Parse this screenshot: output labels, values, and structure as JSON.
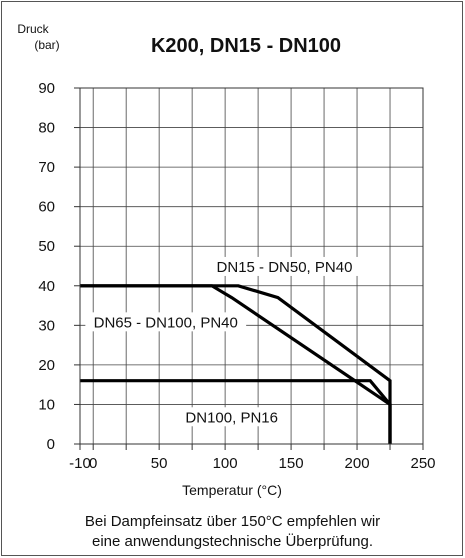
{
  "chart_data": {
    "type": "line",
    "title": "K200, DN15 - DN100",
    "ylabel": [
      "Druck",
      "(bar)"
    ],
    "xlabel": "Temperatur (°C)",
    "xlim": [
      -10,
      250
    ],
    "ylim": [
      0,
      90
    ],
    "x_ticks": [
      "-10",
      "0",
      "50",
      "100",
      "150",
      "200",
      "250"
    ],
    "y_ticks": [
      "0",
      "10",
      "20",
      "30",
      "40",
      "50",
      "60",
      "70",
      "80",
      "90"
    ],
    "grid": true,
    "series": [
      {
        "name": "DN15 - DN50, PN40",
        "points": [
          [
            -10,
            40
          ],
          [
            110,
            40
          ],
          [
            140,
            37
          ],
          [
            225,
            16
          ],
          [
            225,
            0
          ]
        ]
      },
      {
        "name": "DN65 - DN100, PN40",
        "points": [
          [
            -10,
            40
          ],
          [
            90,
            40
          ],
          [
            105,
            37
          ],
          [
            225,
            10
          ],
          [
            225,
            0
          ]
        ]
      },
      {
        "name": "DN100, PN16",
        "points": [
          [
            -10,
            16
          ],
          [
            210,
            16
          ],
          [
            225,
            10
          ],
          [
            225,
            0
          ]
        ]
      }
    ],
    "annotations": [
      {
        "text": "DN15 - DN50, PN40",
        "x": 145,
        "y": 44
      },
      {
        "text": "DN65 - DN100, PN40",
        "x": 55,
        "y": 30
      },
      {
        "text": "DN100, PN16",
        "x": 105,
        "y": 6
      }
    ]
  },
  "note": [
    "Bei Dampfeinsatz über 150°C empfehlen wir",
    "eine anwendungstechnische Überprüfung."
  ]
}
